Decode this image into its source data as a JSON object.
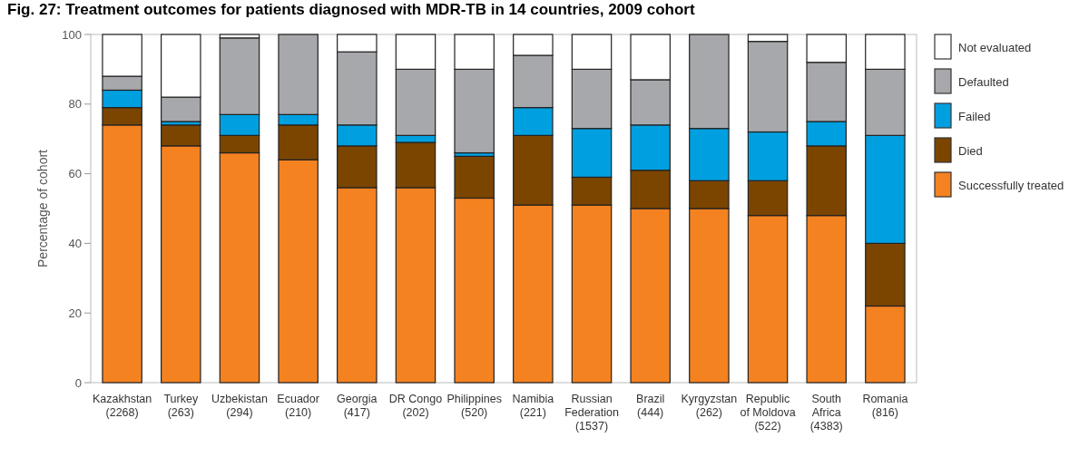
{
  "chart_data": {
    "type": "bar",
    "stacked": true,
    "title": "Fig. 27: Treatment outcomes for patients diagnosed with MDR-TB in 14 countries, 2009 cohort",
    "ylabel": "Percentage of cohort",
    "categories": [
      "Kazakhstan\n(2268)",
      "Turkey\n(263)",
      "Uzbekistan\n(294)",
      "Ecuador\n(210)",
      "Georgia\n(417)",
      "DR Congo\n(202)",
      "Philippines\n(520)",
      "Namibia\n(221)",
      "Russian\nFederation\n(1537)",
      "Brazil\n(444)",
      "Kyrgyzstan\n(262)",
      "Republic\nof Moldova\n(522)",
      "South\nAfrica\n(4383)",
      "Romania\n(816)"
    ],
    "series": [
      {
        "name": "Successfully treated",
        "color": "#f58220",
        "values": [
          74,
          68,
          66,
          64,
          56,
          56,
          53,
          51,
          51,
          50,
          50,
          48,
          48,
          22
        ]
      },
      {
        "name": "Died",
        "color": "#7b4500",
        "values": [
          5,
          6,
          5,
          10,
          12,
          13,
          12,
          20,
          8,
          11,
          8,
          10,
          20,
          18
        ]
      },
      {
        "name": "Failed",
        "color": "#00a0e0",
        "values": [
          5,
          1,
          6,
          3,
          6,
          2,
          1,
          8,
          14,
          13,
          15,
          14,
          7,
          31
        ]
      },
      {
        "name": "Defaulted",
        "color": "#a7a8ab",
        "values": [
          4,
          7,
          22,
          23,
          21,
          19,
          24,
          15,
          17,
          13,
          27,
          26,
          17,
          19
        ]
      },
      {
        "name": "Not evaluated",
        "color": "#ffffff",
        "values": [
          12,
          18,
          1,
          0,
          5,
          10,
          10,
          6,
          10,
          13,
          0,
          2,
          8,
          10
        ]
      }
    ],
    "ylim": [
      0,
      100
    ],
    "yticks": [
      0,
      20,
      40,
      60,
      80,
      100
    ],
    "grid": false,
    "legend": "right"
  }
}
